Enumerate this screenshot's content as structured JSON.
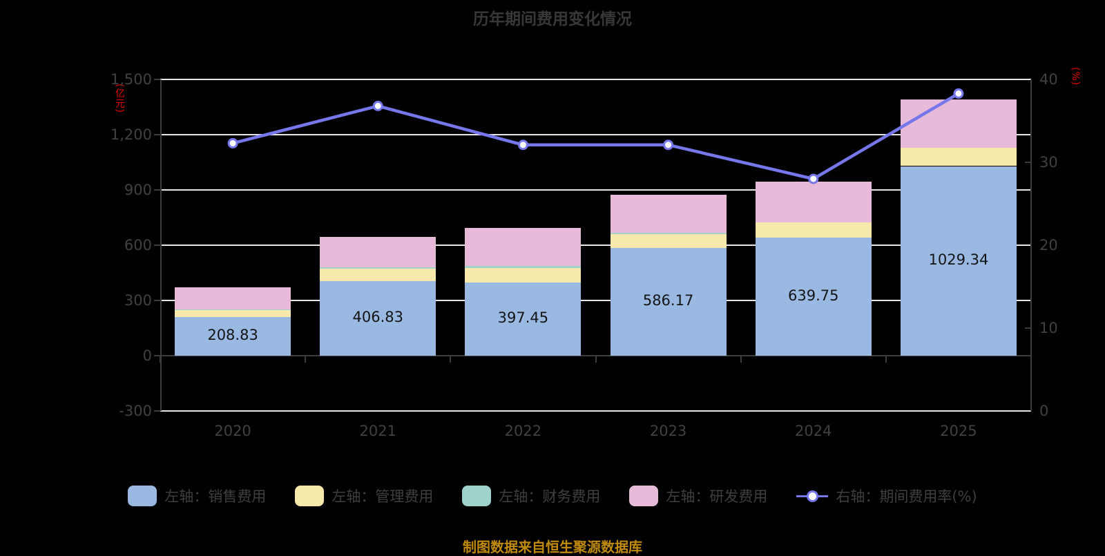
{
  "title": "历年期间费用变化情况",
  "caption": "制图数据来自恒生聚源数据库",
  "colors": {
    "background": "#000000",
    "title_text": "#383838",
    "axis_label": "#414141",
    "axis_line": "#3d3d3d",
    "grid_line": "#e8e8e8",
    "bar_label": "#141414",
    "axis_name_red": "#e60000",
    "caption_orange": "#c08a0c",
    "sales_blue": "#9ab9e2",
    "admin_yellow": "#f7e9ab",
    "finance_teal": "#9fd2ca",
    "rd_pink": "#e7bada",
    "line_purple": "#7577ea"
  },
  "chart_data": {
    "type": "bar",
    "subtype": "stacked-bars-with-line",
    "categories": [
      "2020",
      "2021",
      "2022",
      "2023",
      "2024",
      "2025"
    ],
    "series": [
      {
        "name": "左轴：销售费用",
        "type": "bar",
        "axis": "left",
        "color": "#9ab9e2",
        "values": [
          208.83,
          406.83,
          397.45,
          586.17,
          639.75,
          1029.34
        ]
      },
      {
        "name": "左轴：管理费用",
        "type": "bar",
        "axis": "left",
        "color": "#f7e9ab",
        "values": [
          42,
          66,
          80,
          75,
          84,
          100
        ]
      },
      {
        "name": "左轴：财务费用",
        "type": "bar",
        "axis": "left",
        "color": "#9fd2ca",
        "values": [
          2,
          8,
          10,
          8,
          0,
          0
        ]
      },
      {
        "name": "左轴：研发费用",
        "type": "bar",
        "axis": "left",
        "color": "#e7bada",
        "values": [
          120,
          164,
          206,
          206,
          221,
          262
        ]
      },
      {
        "name": "右轴：期间费用率(%)",
        "type": "line",
        "axis": "right",
        "color": "#7577ea",
        "values": [
          32.3,
          36.8,
          32.1,
          32.1,
          28.0,
          38.3
        ]
      }
    ],
    "bar_labels": [
      "208.83",
      "406.83",
      "397.45",
      "586.17",
      "639.75",
      "1029.34"
    ],
    "left_axis": {
      "name": "(亿元)",
      "min": -300,
      "max": 1500,
      "step": 300,
      "tick_labels": [
        "1,500",
        "1,200",
        "900",
        "600",
        "300",
        "0",
        "-300"
      ]
    },
    "right_axis": {
      "name": "(%)",
      "min": 0,
      "max": 40,
      "step": 10,
      "tick_labels": [
        "40",
        "30",
        "20",
        "10",
        "0"
      ]
    },
    "grid": true,
    "legend_position": "bottom"
  },
  "legend": {
    "items": [
      {
        "label": "左轴：销售费用",
        "color": "#9ab9e2",
        "marker": "bar-swatch"
      },
      {
        "label": "左轴：管理费用",
        "color": "#f7e9ab",
        "marker": "bar-swatch"
      },
      {
        "label": "左轴：财务费用",
        "color": "#9fd2ca",
        "marker": "bar-swatch"
      },
      {
        "label": "左轴：研发费用",
        "color": "#e7bada",
        "marker": "bar-swatch"
      },
      {
        "label": "右轴：期间费用率(%)",
        "color": "#7577ea",
        "marker": "line-dot"
      }
    ]
  }
}
